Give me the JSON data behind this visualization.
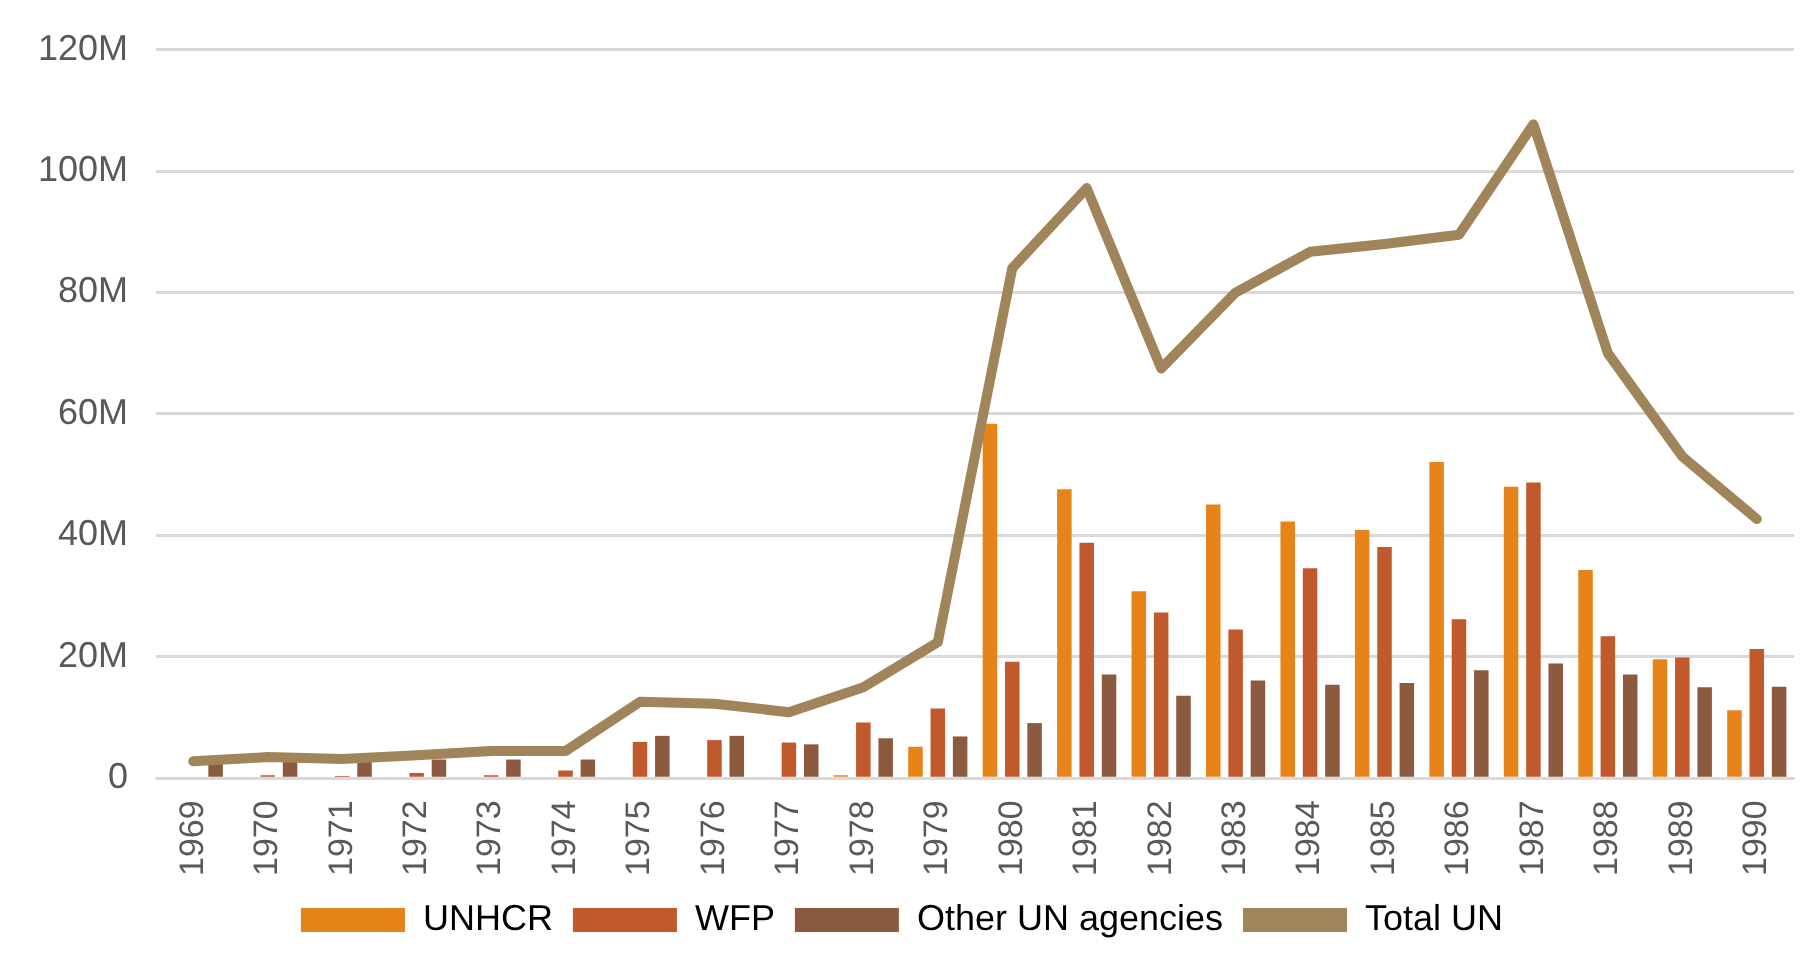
{
  "chart_data": {
    "type": "bar",
    "categories": [
      "1969",
      "1970",
      "1971",
      "1972",
      "1973",
      "1974",
      "1975",
      "1976",
      "1977",
      "1978",
      "1979",
      "1980",
      "1981",
      "1982",
      "1983",
      "1984",
      "1985",
      "1986",
      "1987",
      "1988",
      "1989",
      "1990"
    ],
    "series": [
      {
        "name": "UNHCR",
        "color": "#e6841a",
        "values": [
          0,
          0,
          0,
          0,
          0,
          0,
          0,
          0,
          0,
          0.5,
          5.2,
          58.4,
          47.6,
          30.8,
          45.1,
          42.3,
          40.9,
          52.1,
          48,
          34.3,
          19.6,
          11.2
        ]
      },
      {
        "name": "WFP",
        "color": "#c0592b",
        "values": [
          0,
          0.5,
          0.4,
          0.9,
          0.5,
          1.3,
          6,
          6.3,
          5.9,
          9.2,
          11.5,
          19.2,
          38.8,
          27.3,
          24.5,
          34.6,
          38.1,
          26.2,
          48.7,
          23.4,
          19.9,
          21.3
        ]
      },
      {
        "name": "Other UN agencies",
        "color": "#8b5a3f",
        "values": [
          3,
          3,
          3,
          3.1,
          3.1,
          3.1,
          7,
          7,
          5.6,
          6.6,
          6.9,
          9.1,
          17.1,
          13.6,
          16.1,
          15.4,
          15.7,
          17.8,
          18.9,
          17.1,
          15,
          15.1
        ]
      },
      {
        "name": "Total UN",
        "type": "line",
        "color": "#a0845a",
        "values": [
          2.8,
          3.5,
          3.2,
          3.8,
          4.5,
          4.5,
          12.6,
          12.3,
          10.9,
          15,
          22.4,
          84,
          97.2,
          67.5,
          80,
          86.7,
          88,
          89.5,
          107.7,
          70,
          53,
          42.7
        ]
      }
    ],
    "ylim": [
      0,
      120
    ],
    "yticks": [
      {
        "value": 0,
        "label": "0"
      },
      {
        "value": 20,
        "label": "20M"
      },
      {
        "value": 40,
        "label": "40M"
      },
      {
        "value": 60,
        "label": "60M"
      },
      {
        "value": 80,
        "label": "80M"
      },
      {
        "value": 100,
        "label": "100M"
      },
      {
        "value": 120,
        "label": "120M"
      }
    ],
    "grid": "y",
    "legend": "bottom",
    "marker": "none"
  }
}
